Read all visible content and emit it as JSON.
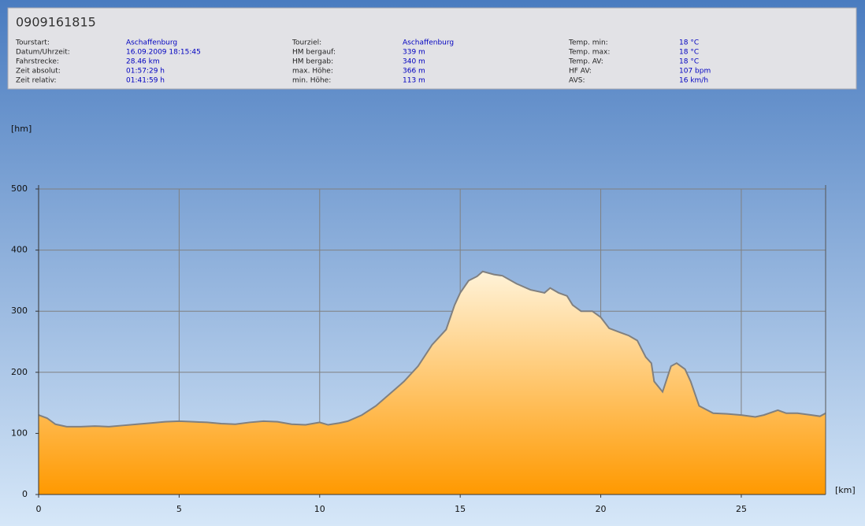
{
  "header": {
    "title": "0909161815",
    "info": [
      [
        {
          "label": "Tourstart:",
          "value": "Aschaffenburg"
        },
        {
          "label": "Datum/Uhrzeit:",
          "value": "16.09.2009 18:15:45"
        },
        {
          "label": "Fahrstrecke:",
          "value": "28.46 km"
        },
        {
          "label": "Zeit absolut:",
          "value": "01:57:29 h"
        },
        {
          "label": "Zeit relativ:",
          "value": "01:41:59 h"
        }
      ],
      [
        {
          "label": "Tourziel:",
          "value": "Aschaffenburg"
        },
        {
          "label": "HM bergauf:",
          "value": "339 m"
        },
        {
          "label": "HM bergab:",
          "value": "340 m"
        },
        {
          "label": "max. Höhe:",
          "value": "366 m"
        },
        {
          "label": "min. Höhe:",
          "value": "113 m"
        }
      ],
      [
        {
          "label": "Temp. min:",
          "value": "18 °C"
        },
        {
          "label": "Temp. max:",
          "value": "18 °C"
        },
        {
          "label": "Temp. AV:",
          "value": "18 °C"
        },
        {
          "label": "HF AV:",
          "value": "107 bpm"
        },
        {
          "label": "AVS:",
          "value": "16 km/h"
        }
      ]
    ]
  },
  "chart_data": {
    "type": "area",
    "y_label": "[hm]",
    "x_label": "[km]",
    "x": [
      0,
      0.3,
      0.6,
      1,
      1.5,
      2,
      2.5,
      3,
      3.5,
      4,
      4.5,
      5,
      5.5,
      6,
      6.5,
      7,
      7.5,
      8,
      8.5,
      9,
      9.5,
      10,
      10.3,
      10.7,
      11,
      11.5,
      12,
      12.5,
      13,
      13.5,
      14,
      14.5,
      14.8,
      15,
      15.3,
      15.6,
      15.8,
      16.2,
      16.5,
      17,
      17.5,
      18,
      18.2,
      18.5,
      18.8,
      19,
      19.3,
      19.7,
      20,
      20.3,
      20.7,
      21,
      21.3,
      21.6,
      21.8,
      21.9,
      22.2,
      22.5,
      22.7,
      23,
      23.2,
      23.5,
      24,
      24.5,
      25,
      25.5,
      25.8,
      26.3,
      26.6,
      27,
      27.5,
      27.8,
      28
    ],
    "values": [
      130,
      125,
      115,
      111,
      111,
      112,
      111,
      113,
      115,
      117,
      119,
      120,
      119,
      118,
      116,
      115,
      118,
      120,
      119,
      115,
      114,
      118,
      114,
      117,
      120,
      130,
      145,
      165,
      185,
      210,
      245,
      270,
      310,
      330,
      350,
      357,
      365,
      360,
      358,
      345,
      335,
      330,
      338,
      330,
      325,
      310,
      300,
      300,
      290,
      272,
      265,
      260,
      252,
      225,
      215,
      185,
      168,
      210,
      215,
      205,
      185,
      145,
      133,
      132,
      130,
      127,
      130,
      138,
      133,
      133,
      130,
      128,
      133
    ],
    "xlim": [
      0,
      28
    ],
    "ylim": [
      0,
      500
    ],
    "xticks": [
      0,
      5,
      10,
      15,
      20,
      25
    ],
    "yticks": [
      0,
      100,
      200,
      300,
      400,
      500
    ],
    "grid": true,
    "color": "#ff9900",
    "top_color": "#fff3d9",
    "line_color": "#808080"
  }
}
